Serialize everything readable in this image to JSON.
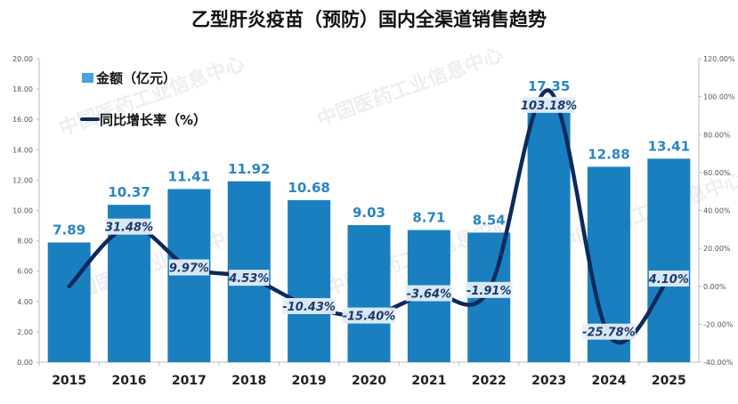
{
  "chart_data": {
    "type": "bar",
    "title": "乙型肝炎疫苗（预防）国内全渠道销售趋势",
    "categories": [
      "2015",
      "2016",
      "2017",
      "2018",
      "2019",
      "2020",
      "2021",
      "2022",
      "2023",
      "2024",
      "2025"
    ],
    "series": [
      {
        "name": "金额（亿元）",
        "type": "bar",
        "axis": "left",
        "color": "#1a7fbf",
        "values": [
          7.89,
          10.37,
          11.41,
          11.92,
          10.68,
          9.03,
          8.71,
          8.54,
          17.35,
          12.88,
          13.41
        ],
        "labels": [
          "7.89",
          "10.37",
          "11.41",
          "11.92",
          "10.68",
          "9.03",
          "8.71",
          "8.54",
          "17.35",
          "12.88",
          "13.41"
        ]
      },
      {
        "name": "同比增长率（%）",
        "type": "line",
        "axis": "right",
        "color": "#0d2a5c",
        "values": [
          0,
          31.48,
          9.97,
          4.53,
          -10.43,
          -15.4,
          -3.64,
          -1.91,
          103.18,
          -25.78,
          4.1
        ],
        "labels": [
          "",
          "31.48%",
          "9.97%",
          "4.53%",
          "-10.43%",
          "-15.40%",
          "-3.64%",
          "-1.91%",
          "103.18%",
          "-25.78%",
          "4.10%"
        ]
      }
    ],
    "ylim": [
      0,
      20
    ],
    "y2lim": [
      -40,
      120
    ],
    "yticks": [
      "0.00",
      "2.00",
      "4.00",
      "6.00",
      "8.00",
      "10.00",
      "12.00",
      "14.00",
      "16.00",
      "18.00",
      "20.00"
    ],
    "y2ticks": [
      "-40.00%",
      "-20.00%",
      "0.00%",
      "20.00%",
      "40.00%",
      "60.00%",
      "80.00%",
      "100.00%",
      "120.00%"
    ],
    "legend": "top-left",
    "grid": false,
    "watermark": "中国医药工业信息中心"
  }
}
